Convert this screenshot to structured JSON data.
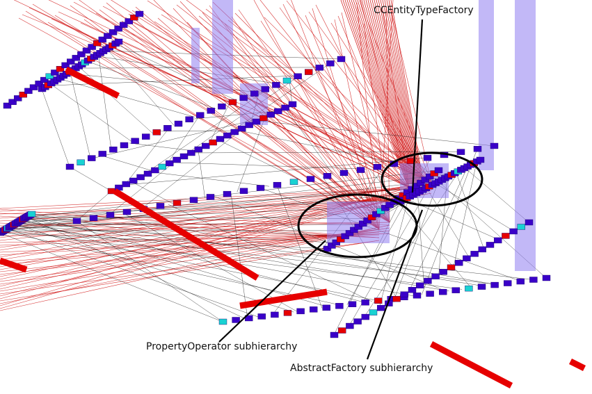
{
  "annotations": {
    "top_label": "CCEntityTypeFactory",
    "left_label": "PropertyOperator subhierarchy",
    "bottom_label": "AbstractFactory subhierarchy"
  },
  "colors": {
    "class_node": "#3a00c8",
    "highlight_node": "#e60000",
    "cyan_node": "#19d2d2",
    "translucent_column": "#8f7ef0",
    "dependency_line_red": "#d01010",
    "tree_line_black": "#000000",
    "background": "#ffffff"
  },
  "elements": {
    "visualization": "3D class hierarchy visualization with red dependency links",
    "ellipses": 2
  }
}
